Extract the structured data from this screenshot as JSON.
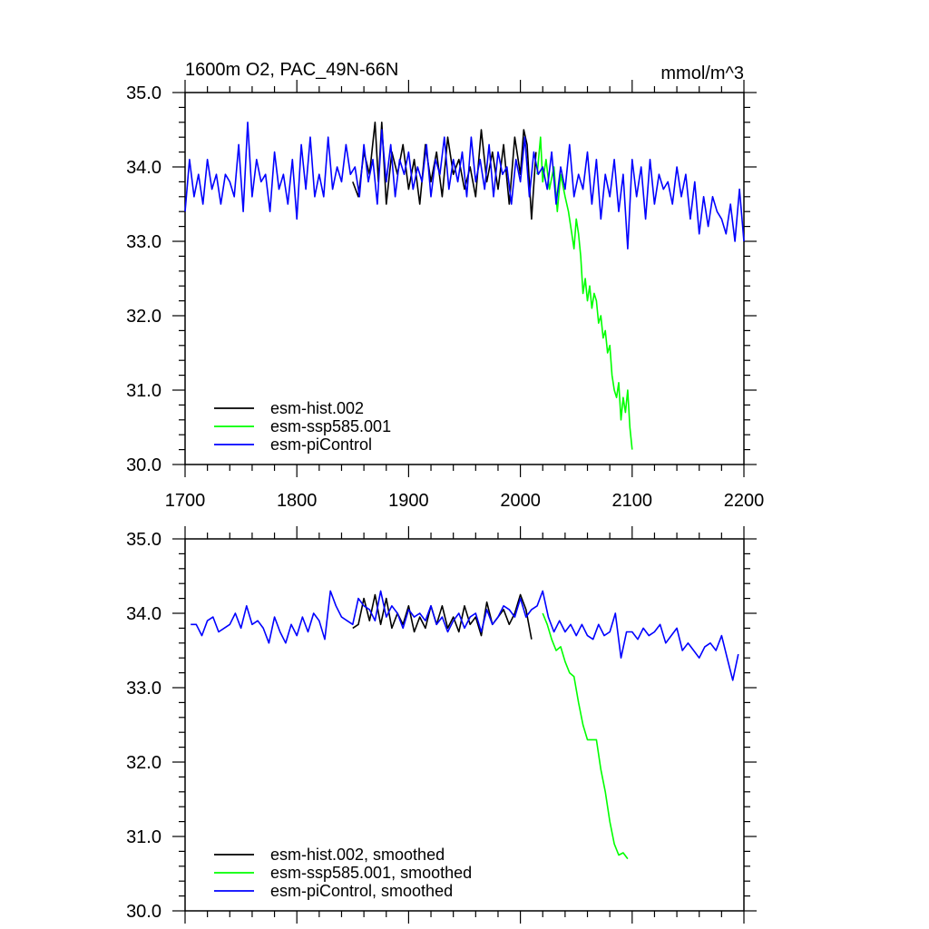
{
  "figure": {
    "title": "1600m O2, PAC_49N-66N",
    "units": "mmol/m^3"
  },
  "chart_data": [
    {
      "type": "line",
      "panel": "top",
      "xlim": [
        1700,
        2200
      ],
      "ylim": [
        30.0,
        35.0
      ],
      "x_ticks": [
        1700,
        1800,
        1900,
        2000,
        2100,
        2200
      ],
      "x_tick_labels": [
        "1700",
        "1800",
        "1900",
        "2000",
        "2100",
        "2200"
      ],
      "y_ticks": [
        30.0,
        31.0,
        32.0,
        33.0,
        34.0,
        35.0
      ],
      "y_tick_labels": [
        "30.0",
        "31.0",
        "32.0",
        "33.0",
        "34.0",
        "35.0"
      ],
      "legend_position": "bottom-left",
      "grid": false,
      "series": [
        {
          "name": "esm-hist.002",
          "color": "#000000",
          "x": [
            1850,
            1855,
            1860,
            1865,
            1870,
            1873,
            1876,
            1880,
            1885,
            1890,
            1895,
            1900,
            1905,
            1910,
            1915,
            1920,
            1925,
            1930,
            1935,
            1940,
            1945,
            1950,
            1955,
            1960,
            1965,
            1970,
            1975,
            1980,
            1985,
            1990,
            1995,
            2000,
            2003,
            2006,
            2010,
            2014
          ],
          "y": [
            33.8,
            33.6,
            34.2,
            33.9,
            34.6,
            33.8,
            34.6,
            33.5,
            34.2,
            33.9,
            34.3,
            33.7,
            34.1,
            33.5,
            34.3,
            33.8,
            34.2,
            33.6,
            34.4,
            33.9,
            34.1,
            33.7,
            34.0,
            33.6,
            34.5,
            33.8,
            34.2,
            33.7,
            34.3,
            33.5,
            34.4,
            33.9,
            34.5,
            34.3,
            33.3,
            34.2
          ]
        },
        {
          "name": "esm-ssp585.001",
          "color": "#00ff00",
          "x": [
            2015,
            2018,
            2020,
            2023,
            2026,
            2030,
            2033,
            2036,
            2040,
            2043,
            2046,
            2048,
            2050,
            2052,
            2054,
            2056,
            2058,
            2060,
            2062,
            2064,
            2066,
            2068,
            2070,
            2072,
            2074,
            2076,
            2078,
            2080,
            2082,
            2084,
            2086,
            2088,
            2090,
            2092,
            2094,
            2096,
            2098,
            2100
          ],
          "y": [
            33.9,
            34.4,
            33.8,
            34.1,
            33.7,
            34.0,
            33.4,
            33.9,
            33.6,
            33.4,
            33.1,
            32.9,
            33.3,
            33.1,
            32.8,
            32.3,
            32.5,
            32.2,
            32.4,
            32.1,
            32.3,
            32.2,
            31.9,
            32.0,
            31.7,
            31.8,
            31.5,
            31.6,
            31.2,
            31.0,
            30.9,
            31.1,
            30.6,
            30.9,
            30.7,
            31.0,
            30.5,
            30.2
          ]
        },
        {
          "name": "esm-piControl",
          "color": "#0000ff",
          "x": [
            1700,
            1704,
            1708,
            1712,
            1716,
            1720,
            1724,
            1728,
            1732,
            1736,
            1740,
            1744,
            1748,
            1752,
            1756,
            1760,
            1764,
            1768,
            1772,
            1776,
            1780,
            1784,
            1788,
            1792,
            1796,
            1800,
            1804,
            1808,
            1812,
            1816,
            1820,
            1824,
            1828,
            1832,
            1836,
            1840,
            1844,
            1848,
            1852,
            1856,
            1860,
            1864,
            1868,
            1872,
            1876,
            1880,
            1884,
            1888,
            1892,
            1896,
            1900,
            1904,
            1908,
            1912,
            1916,
            1920,
            1924,
            1928,
            1932,
            1936,
            1940,
            1944,
            1948,
            1952,
            1956,
            1960,
            1964,
            1968,
            1972,
            1976,
            1980,
            1984,
            1988,
            1992,
            1996,
            2000,
            2004,
            2008,
            2012,
            2016,
            2020,
            2024,
            2028,
            2032,
            2036,
            2040,
            2044,
            2048,
            2052,
            2056,
            2060,
            2064,
            2068,
            2072,
            2076,
            2080,
            2084,
            2088,
            2092,
            2096,
            2100,
            2104,
            2108,
            2112,
            2116,
            2120,
            2124,
            2128,
            2132,
            2136,
            2140,
            2144,
            2148,
            2152,
            2156,
            2160,
            2164,
            2168,
            2172,
            2176,
            2180,
            2184,
            2188,
            2192,
            2196,
            2200
          ],
          "y": [
            33.4,
            34.1,
            33.6,
            33.9,
            33.5,
            34.1,
            33.7,
            33.9,
            33.5,
            33.9,
            33.8,
            33.6,
            34.3,
            33.4,
            34.6,
            33.6,
            34.1,
            33.8,
            33.9,
            33.4,
            34.2,
            33.7,
            33.9,
            33.5,
            34.1,
            33.3,
            34.3,
            33.7,
            34.4,
            33.6,
            33.9,
            33.6,
            34.4,
            33.7,
            34.0,
            33.8,
            34.3,
            33.9,
            34.0,
            33.6,
            34.3,
            33.8,
            34.1,
            33.5,
            34.5,
            33.8,
            34.3,
            33.6,
            34.1,
            33.9,
            34.2,
            33.7,
            34.0,
            33.8,
            34.3,
            33.6,
            34.1,
            33.9,
            34.4,
            33.7,
            34.1,
            33.8,
            34.2,
            33.6,
            34.4,
            33.8,
            34.1,
            33.7,
            34.3,
            33.6,
            34.2,
            33.9,
            34.0,
            33.5,
            34.1,
            33.8,
            34.4,
            33.6,
            34.2,
            33.9,
            34.0,
            33.7,
            34.2,
            33.5,
            34.0,
            33.7,
            34.3,
            33.6,
            33.9,
            33.7,
            34.2,
            33.5,
            34.1,
            33.3,
            33.9,
            33.6,
            34.1,
            33.4,
            33.9,
            32.9,
            34.1,
            33.6,
            34.0,
            33.3,
            34.1,
            33.5,
            33.9,
            33.7,
            33.8,
            33.5,
            34.0,
            33.6,
            33.9,
            33.3,
            33.8,
            33.1,
            33.6,
            33.2,
            33.6,
            33.4,
            33.3,
            33.1,
            33.5,
            33.0,
            33.7,
            33.0
          ]
        }
      ]
    },
    {
      "type": "line",
      "panel": "bottom",
      "xlim": [
        1700,
        2200
      ],
      "ylim": [
        30.0,
        35.0
      ],
      "y_ticks": [
        30.0,
        31.0,
        32.0,
        33.0,
        34.0,
        35.0
      ],
      "y_tick_labels": [
        "30.0",
        "31.0",
        "32.0",
        "33.0",
        "34.0",
        "35.0"
      ],
      "legend_position": "bottom-left",
      "grid": false,
      "series": [
        {
          "name": "esm-hist.002, smoothed",
          "color": "#000000",
          "x": [
            1850,
            1855,
            1860,
            1865,
            1870,
            1875,
            1880,
            1885,
            1890,
            1895,
            1900,
            1905,
            1910,
            1915,
            1920,
            1925,
            1930,
            1935,
            1940,
            1945,
            1950,
            1955,
            1960,
            1965,
            1970,
            1975,
            1980,
            1985,
            1990,
            1995,
            2000,
            2005,
            2010
          ],
          "y": [
            33.8,
            33.85,
            34.2,
            33.9,
            34.25,
            33.85,
            34.2,
            33.8,
            34.0,
            33.85,
            34.1,
            33.75,
            33.95,
            33.8,
            34.1,
            33.85,
            34.1,
            33.8,
            33.95,
            33.75,
            34.1,
            33.85,
            33.95,
            33.7,
            34.15,
            33.85,
            33.95,
            34.05,
            33.85,
            34.0,
            34.25,
            34.05,
            33.65
          ]
        },
        {
          "name": "esm-ssp585.001, smoothed",
          "color": "#00ff00",
          "x": [
            2020,
            2024,
            2028,
            2032,
            2036,
            2040,
            2044,
            2048,
            2052,
            2056,
            2060,
            2064,
            2068,
            2072,
            2076,
            2080,
            2084,
            2088,
            2092,
            2096
          ],
          "y": [
            34.0,
            33.85,
            33.65,
            33.5,
            33.55,
            33.35,
            33.2,
            33.15,
            32.8,
            32.5,
            32.3,
            32.3,
            32.3,
            31.9,
            31.6,
            31.2,
            30.9,
            30.75,
            30.78,
            30.7
          ]
        },
        {
          "name": "esm-piControl, smoothed",
          "color": "#0000ff",
          "x": [
            1705,
            1710,
            1715,
            1720,
            1725,
            1730,
            1735,
            1740,
            1745,
            1750,
            1755,
            1760,
            1765,
            1770,
            1775,
            1780,
            1785,
            1790,
            1795,
            1800,
            1805,
            1810,
            1815,
            1820,
            1825,
            1830,
            1835,
            1840,
            1845,
            1850,
            1855,
            1860,
            1865,
            1870,
            1875,
            1880,
            1885,
            1890,
            1895,
            1900,
            1905,
            1910,
            1915,
            1920,
            1925,
            1930,
            1935,
            1940,
            1945,
            1950,
            1955,
            1960,
            1965,
            1970,
            1975,
            1980,
            1985,
            1990,
            1995,
            2000,
            2005,
            2010,
            2015,
            2020,
            2025,
            2030,
            2035,
            2040,
            2045,
            2050,
            2055,
            2060,
            2065,
            2070,
            2075,
            2080,
            2085,
            2090,
            2095,
            2100,
            2105,
            2110,
            2115,
            2120,
            2125,
            2130,
            2135,
            2140,
            2145,
            2150,
            2155,
            2160,
            2165,
            2170,
            2175,
            2180,
            2185,
            2190,
            2195
          ],
          "y": [
            33.85,
            33.85,
            33.7,
            33.9,
            33.95,
            33.75,
            33.8,
            33.85,
            34.0,
            33.8,
            34.1,
            33.85,
            33.9,
            33.8,
            33.6,
            33.95,
            33.75,
            33.6,
            33.85,
            33.7,
            33.95,
            33.75,
            34.0,
            33.9,
            33.65,
            34.3,
            34.1,
            33.95,
            33.9,
            33.85,
            34.2,
            34.1,
            34.05,
            33.9,
            34.3,
            33.95,
            34.1,
            34.0,
            33.8,
            34.05,
            33.95,
            34.0,
            33.9,
            34.1,
            33.85,
            33.95,
            33.75,
            33.9,
            34.0,
            33.8,
            33.95,
            34.0,
            33.75,
            34.05,
            33.85,
            33.95,
            34.1,
            34.05,
            33.95,
            34.2,
            33.95,
            34.05,
            34.1,
            34.3,
            33.95,
            33.75,
            33.9,
            33.75,
            33.85,
            33.7,
            33.85,
            33.7,
            33.65,
            33.85,
            33.7,
            33.75,
            34.0,
            33.4,
            33.75,
            33.75,
            33.65,
            33.8,
            33.7,
            33.75,
            33.85,
            33.6,
            33.7,
            33.8,
            33.5,
            33.6,
            33.5,
            33.4,
            33.55,
            33.6,
            33.5,
            33.7,
            33.4,
            33.1,
            33.45
          ]
        }
      ]
    }
  ]
}
